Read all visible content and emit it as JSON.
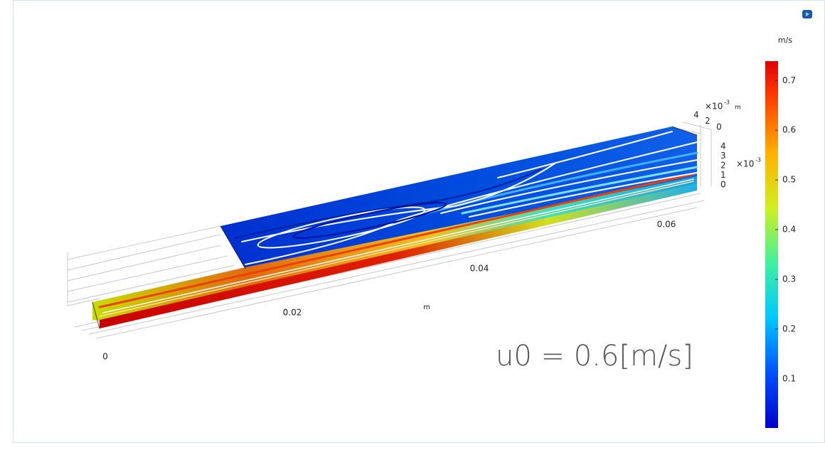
{
  "plot": {
    "colorbar": {
      "unit": "m/s",
      "range": [
        0.001,
        0.739
      ],
      "ticks": [
        0.1,
        0.2,
        0.3,
        0.4,
        0.5,
        0.6,
        0.7
      ]
    },
    "axes": {
      "x": {
        "ticks": [
          0,
          0.02,
          0.04,
          0.06
        ],
        "unit": "m"
      },
      "y": {
        "ticks": [
          4,
          2,
          0
        ],
        "factor": "×10",
        "exponent": "-3",
        "unit": "m"
      },
      "z": {
        "ticks": [
          4,
          3,
          2,
          1,
          0
        ],
        "factor": "×10",
        "exponent": "-3"
      }
    },
    "annotation": "u0 = 0.6[m/s]"
  }
}
